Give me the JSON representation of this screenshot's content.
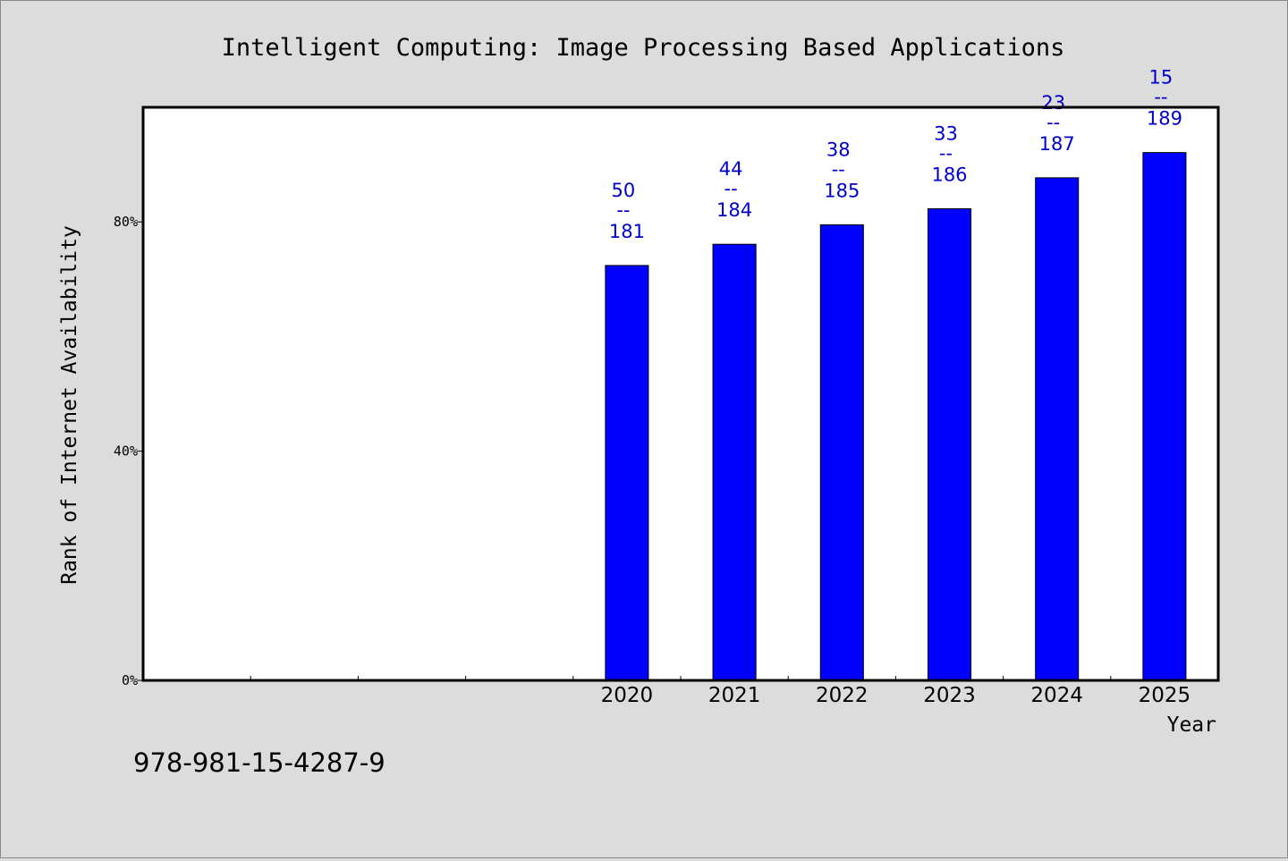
{
  "chart_data": {
    "type": "bar",
    "title": "Intelligent Computing: Image Processing Based Applications",
    "xlabel": "Year",
    "ylabel": "Rank of Internet Availability",
    "categories": [
      "",
      "",
      "",
      "",
      "2020",
      "2021",
      "2022",
      "2023",
      "2024",
      "2025"
    ],
    "values": [
      null,
      null,
      null,
      null,
      72.4,
      76.1,
      79.5,
      82.3,
      87.7,
      92.1
    ],
    "data_labels": [
      null,
      null,
      null,
      null,
      {
        "rank": "50",
        "sep": "--",
        "total": "181"
      },
      {
        "rank": "44",
        "sep": "--",
        "total": "184"
      },
      {
        "rank": "38",
        "sep": "--",
        "total": "185"
      },
      {
        "rank": "33",
        "sep": "--",
        "total": "186"
      },
      {
        "rank": "23",
        "sep": "--",
        "total": "187"
      },
      {
        "rank": "15",
        "sep": "--",
        "total": "189"
      }
    ],
    "ylim": [
      0,
      100
    ],
    "yticks": [
      0,
      40,
      80
    ],
    "ytick_labels": [
      "0%",
      "40%",
      "80%"
    ],
    "grid": false,
    "colors": {
      "bar": "#0000ff",
      "label": "#0000cc",
      "background": "#dcdcdc",
      "plot_bg": "#ffffff"
    }
  },
  "footer": {
    "isbn": "978-981-15-4287-9"
  }
}
